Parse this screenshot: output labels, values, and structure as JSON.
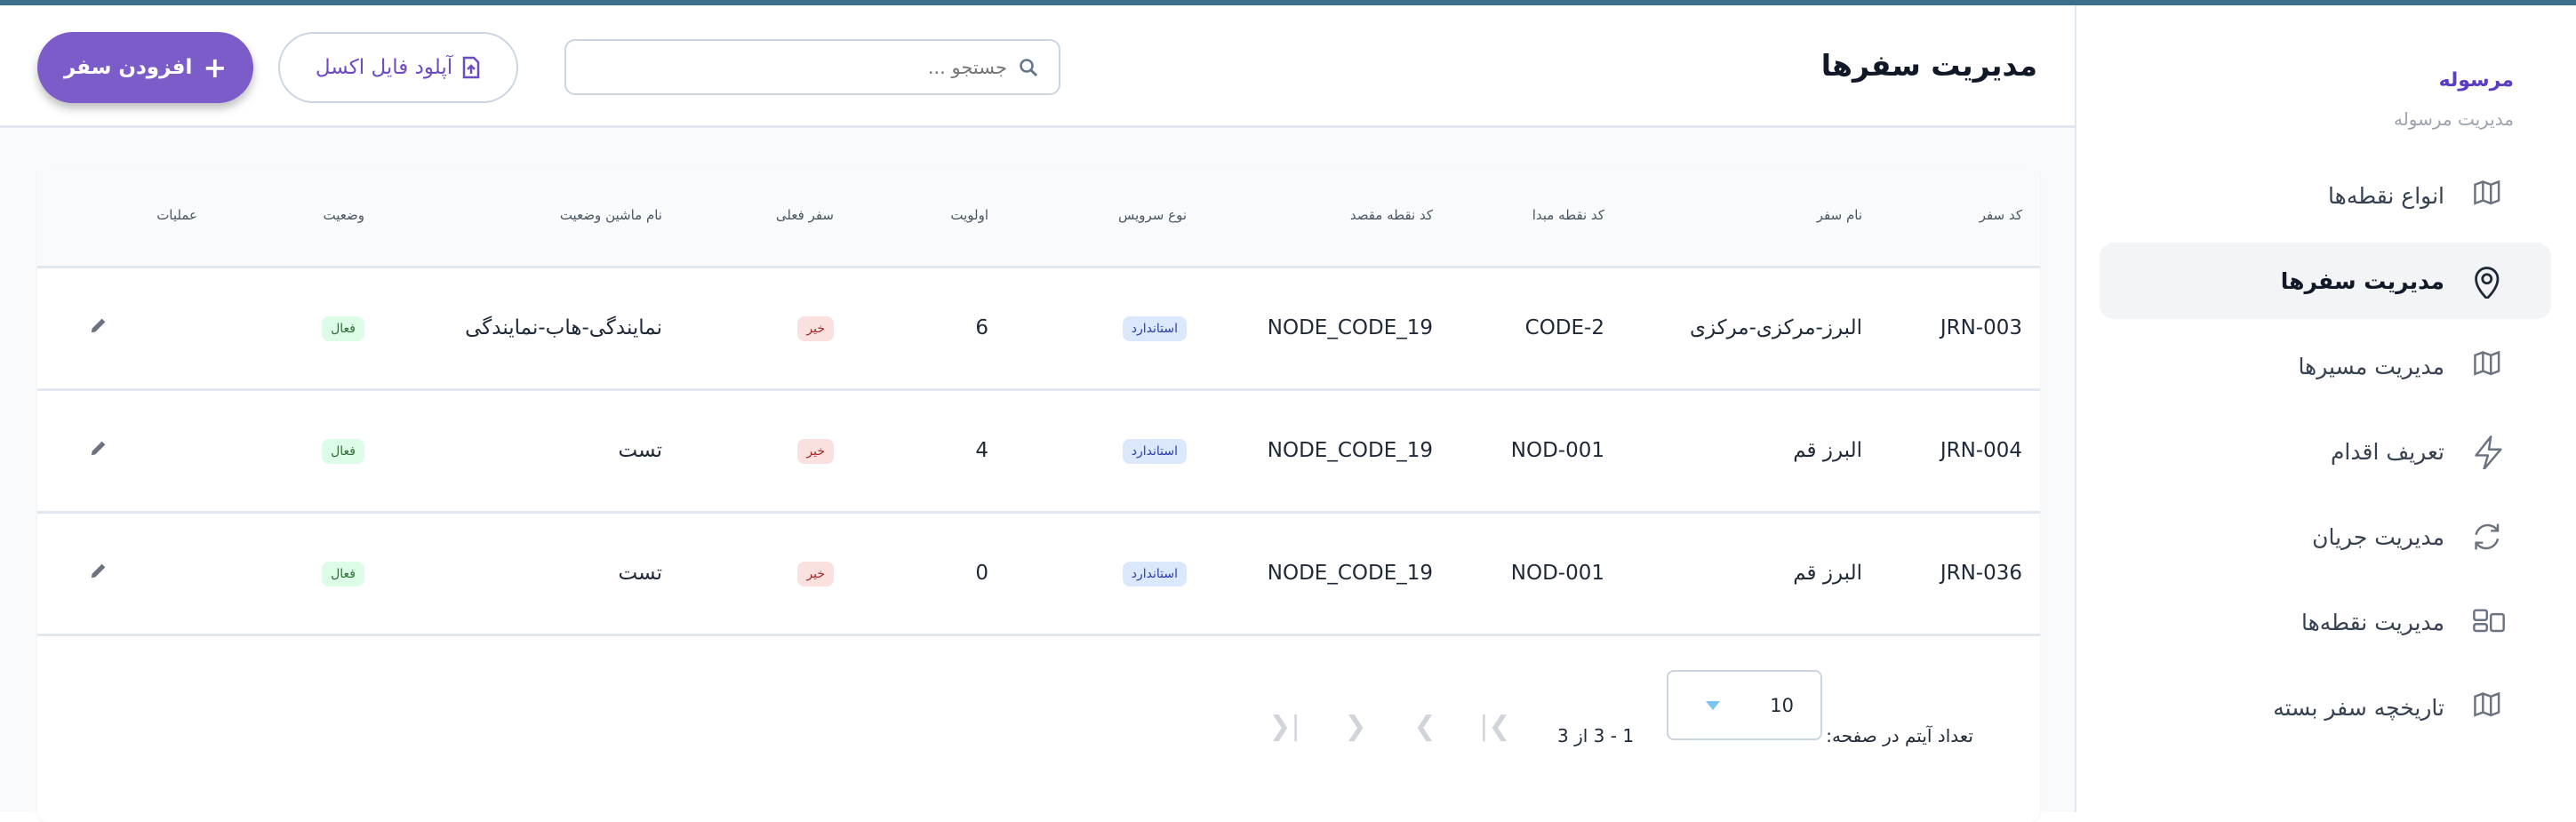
{
  "header": {
    "title": "مدیریت سفرها",
    "search_placeholder": "جستجو ...",
    "upload_label": "آپلود فایل اکسل",
    "add_label": "افزودن سفر"
  },
  "table": {
    "columns": [
      "کد سفر",
      "نام سفر",
      "کد نقطه مبدا",
      "کد نقطه مقصد",
      "نوع سرویس",
      "اولویت",
      "سفر فعلی",
      "نام ماشین وضعیت",
      "وضعیت",
      "عملیات"
    ],
    "rows": [
      {
        "code": "JRN-003",
        "name": "البرز-مرکزی-مرکزی",
        "origin": "CODE-2",
        "dest": "NODE_CODE_19",
        "service": "استاندارد",
        "priority": "6",
        "current": "خیر",
        "machine": "نمایندگی-هاب-نمایندگی",
        "status": "فعال"
      },
      {
        "code": "JRN-004",
        "name": "البرز قم",
        "origin": "NOD-001",
        "dest": "NODE_CODE_19",
        "service": "استاندارد",
        "priority": "4",
        "current": "خیر",
        "machine": "تست",
        "status": "فعال"
      },
      {
        "code": "JRN-036",
        "name": "البرز قم",
        "origin": "NOD-001",
        "dest": "NODE_CODE_19",
        "service": "استاندارد",
        "priority": "0",
        "current": "خیر",
        "machine": "تست",
        "status": "فعال"
      }
    ]
  },
  "pagination": {
    "per_page_label": "تعداد آیتم در صفحه:",
    "per_page_value": "10",
    "range": "1 - 3 از 3"
  },
  "sidebar": {
    "title": "مرسوله",
    "subtitle": "مدیریت مرسوله",
    "items": [
      {
        "label": "انواع نقطه‌ها",
        "icon": "map-icon"
      },
      {
        "label": "مدیریت سفرها",
        "icon": "map-pin-icon",
        "active": true
      },
      {
        "label": "مدیریت مسیرها",
        "icon": "map-icon"
      },
      {
        "label": "تعریف اقدام",
        "icon": "lightning-icon"
      },
      {
        "label": "مدیریت جریان",
        "icon": "refresh-icon"
      },
      {
        "label": "مدیریت نقطه‌ها",
        "icon": "layout-icon"
      },
      {
        "label": "تاریخچه سفر بسته",
        "icon": "map-icon"
      }
    ]
  },
  "colors": {
    "accent": "#7b5cc9",
    "top_stripe": "#3d6e8c",
    "sidebar_title": "#5b3cc4"
  }
}
